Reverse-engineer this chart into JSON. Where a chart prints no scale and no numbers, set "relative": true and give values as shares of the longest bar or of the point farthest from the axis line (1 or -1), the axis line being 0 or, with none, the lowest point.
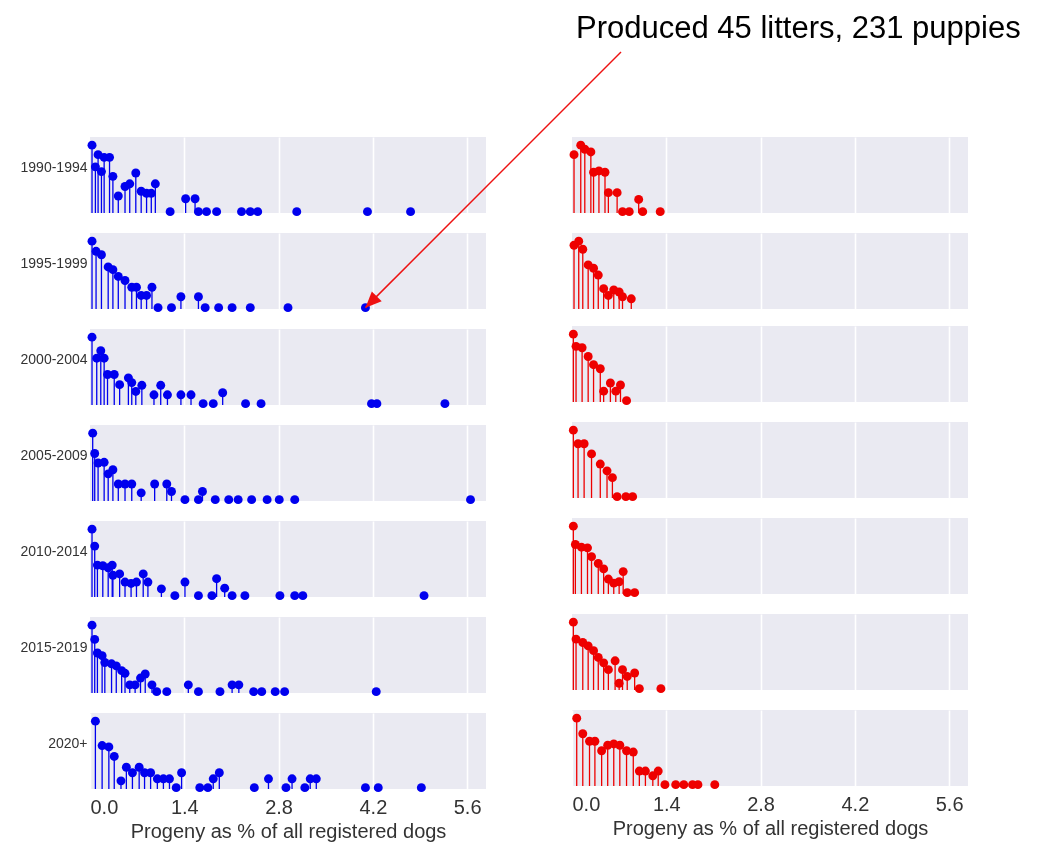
{
  "chart_data": [
    {
      "type": "lollipop",
      "ylabel": "1990-1994",
      "relative": true,
      "marker": "circle",
      "grid": "x",
      "tick_labels": false,
      "xlim": [
        0,
        5.88
      ],
      "xticks": [
        1.4,
        2.8,
        4.2,
        5.6
      ],
      "x": [
        0.03,
        0.08,
        0.12,
        0.17,
        0.21,
        0.29,
        0.34,
        0.42,
        0.52,
        0.59,
        0.68,
        0.76,
        0.84,
        0.91,
        0.97,
        1.19,
        1.42,
        1.56,
        1.61,
        1.73,
        1.88,
        2.25,
        2.38,
        2.49,
        3.07,
        4.12,
        4.76
      ],
      "series": [
        {
          "color": "#0000ee",
          "values": [
            1,
            0.68,
            0.86,
            0.61,
            0.82,
            0.82,
            0.54,
            0.25,
            0.39,
            0.43,
            0.59,
            0.32,
            0.29,
            0.29,
            0.43,
            0.02,
            0.21,
            0.21,
            0.02,
            0.02,
            0.02,
            0.02,
            0.02,
            0.02,
            0.02,
            0.02,
            0.02
          ]
        }
      ]
    },
    {
      "type": "lollipop",
      "relative": true,
      "marker": "circle",
      "grid": "x",
      "tick_labels": false,
      "xlim": [
        0,
        5.88
      ],
      "xticks": [
        1.4,
        2.8,
        4.2,
        5.6
      ],
      "x": [
        0.03,
        0.13,
        0.19,
        0.28,
        0.32,
        0.4,
        0.49,
        0.54,
        0.67,
        0.75,
        0.85,
        0.99,
        1.05,
        1.31
      ],
      "series": [
        {
          "color": "#ee0000",
          "values": [
            0.86,
            1,
            0.94,
            0.9,
            0.6,
            0.62,
            0.6,
            0.3,
            0.3,
            0.02,
            0.02,
            0.2,
            0.02,
            0.02
          ]
        }
      ]
    },
    {
      "type": "lollipop",
      "ylabel": "1995-1999",
      "relative": true,
      "marker": "circle",
      "grid": "x",
      "tick_labels": false,
      "xlim": [
        0,
        5.88
      ],
      "xticks": [
        1.4,
        2.8,
        4.2,
        5.6
      ],
      "annotations": [
        {
          "text": "Produced 45 litters, 231 puppies",
          "x": 4.09,
          "y": 0.02
        }
      ],
      "x": [
        0.03,
        0.09,
        0.17,
        0.27,
        0.34,
        0.42,
        0.52,
        0.62,
        0.69,
        0.76,
        0.84,
        0.92,
        1.01,
        1.21,
        1.35,
        1.61,
        1.71,
        1.91,
        2.11,
        2.38,
        2.94,
        4.09
      ],
      "series": [
        {
          "color": "#0000ee",
          "values": [
            1,
            0.85,
            0.8,
            0.62,
            0.58,
            0.48,
            0.42,
            0.32,
            0.32,
            0.2,
            0.2,
            0.32,
            0.02,
            0.02,
            0.18,
            0.18,
            0.02,
            0.02,
            0.02,
            0.02,
            0.02,
            0.02
          ]
        }
      ]
    },
    {
      "type": "lollipop",
      "relative": true,
      "marker": "circle",
      "grid": "x",
      "tick_labels": false,
      "xlim": [
        0,
        5.88
      ],
      "xticks": [
        1.4,
        2.8,
        4.2,
        5.6
      ],
      "x": [
        0.03,
        0.1,
        0.16,
        0.24,
        0.32,
        0.39,
        0.47,
        0.54,
        0.62,
        0.7,
        0.75,
        0.88
      ],
      "series": [
        {
          "color": "#ee0000",
          "values": [
            0.94,
            1,
            0.88,
            0.65,
            0.6,
            0.5,
            0.3,
            0.2,
            0.28,
            0.25,
            0.18,
            0.15
          ]
        }
      ]
    },
    {
      "type": "lollipop",
      "ylabel": "2000-2004",
      "relative": true,
      "marker": "circle",
      "grid": "x",
      "tick_labels": false,
      "xlim": [
        0,
        5.88
      ],
      "xticks": [
        1.4,
        2.8,
        4.2,
        5.6
      ],
      "x": [
        0.03,
        0.1,
        0.16,
        0.21,
        0.26,
        0.36,
        0.44,
        0.57,
        0.62,
        0.68,
        0.77,
        0.95,
        1.05,
        1.15,
        1.35,
        1.5,
        1.68,
        1.83,
        1.97,
        2.31,
        2.54,
        4.18,
        4.26,
        5.27
      ],
      "series": [
        {
          "color": "#0000ee",
          "values": [
            1,
            0.69,
            0.8,
            0.69,
            0.45,
            0.45,
            0.3,
            0.4,
            0.33,
            0.2,
            0.29,
            0.15,
            0.29,
            0.15,
            0.15,
            0.15,
            0.02,
            0.02,
            0.18,
            0.02,
            0.02,
            0.02,
            0.02,
            0.02
          ]
        }
      ]
    },
    {
      "type": "lollipop",
      "relative": true,
      "marker": "circle",
      "grid": "x",
      "tick_labels": false,
      "xlim": [
        0,
        5.88
      ],
      "xticks": [
        1.4,
        2.8,
        4.2,
        5.6
      ],
      "x": [
        0.02,
        0.06,
        0.15,
        0.24,
        0.32,
        0.42,
        0.47,
        0.57,
        0.65,
        0.72,
        0.81
      ],
      "series": [
        {
          "color": "#ee0000",
          "values": [
            1,
            0.82,
            0.8,
            0.67,
            0.55,
            0.49,
            0.16,
            0.28,
            0.16,
            0.25,
            0.02
          ]
        }
      ]
    },
    {
      "type": "lollipop",
      "ylabel": "2005-2009",
      "relative": true,
      "marker": "circle",
      "grid": "x",
      "tick_labels": false,
      "xlim": [
        0,
        5.88
      ],
      "xticks": [
        1.4,
        2.8,
        4.2,
        5.6
      ],
      "x": [
        0.04,
        0.07,
        0.12,
        0.21,
        0.27,
        0.34,
        0.42,
        0.52,
        0.62,
        0.76,
        0.96,
        1.14,
        1.21,
        1.41,
        1.61,
        1.67,
        1.86,
        2.06,
        2.2,
        2.4,
        2.63,
        2.81,
        3.04,
        5.65
      ],
      "series": [
        {
          "color": "#0000ee",
          "values": [
            1,
            0.7,
            0.56,
            0.57,
            0.4,
            0.46,
            0.25,
            0.25,
            0.25,
            0.12,
            0.25,
            0.25,
            0.14,
            0.02,
            0.02,
            0.14,
            0.02,
            0.02,
            0.02,
            0.02,
            0.02,
            0.02,
            0.02,
            0.02
          ]
        }
      ]
    },
    {
      "type": "lollipop",
      "relative": true,
      "marker": "circle",
      "grid": "x",
      "tick_labels": false,
      "xlim": [
        0,
        5.88
      ],
      "xticks": [
        1.4,
        2.8,
        4.2,
        5.6
      ],
      "x": [
        0.02,
        0.09,
        0.18,
        0.29,
        0.42,
        0.52,
        0.6,
        0.67,
        0.8,
        0.9
      ],
      "series": [
        {
          "color": "#ee0000",
          "values": [
            1,
            0.8,
            0.8,
            0.65,
            0.5,
            0.4,
            0.3,
            0.02,
            0.02,
            0.02
          ]
        }
      ]
    },
    {
      "type": "lollipop",
      "ylabel": "2010-2014",
      "relative": true,
      "marker": "circle",
      "grid": "x",
      "tick_labels": false,
      "xlim": [
        0,
        5.88
      ],
      "xticks": [
        1.4,
        2.8,
        4.2,
        5.6
      ],
      "x": [
        0.03,
        0.07,
        0.11,
        0.19,
        0.27,
        0.33,
        0.34,
        0.44,
        0.52,
        0.61,
        0.69,
        0.79,
        0.86,
        1.06,
        1.26,
        1.41,
        1.61,
        1.81,
        1.88,
        2.0,
        2.11,
        2.3,
        2.82,
        3.04,
        3.16,
        4.96
      ],
      "series": [
        {
          "color": "#0000ee",
          "values": [
            1,
            0.75,
            0.47,
            0.46,
            0.43,
            0.47,
            0.32,
            0.34,
            0.22,
            0.2,
            0.22,
            0.34,
            0.22,
            0.12,
            0.02,
            0.22,
            0.02,
            0.02,
            0.27,
            0.13,
            0.02,
            0.02,
            0.02,
            0.02,
            0.02,
            0.02
          ]
        }
      ]
    },
    {
      "type": "lollipop",
      "relative": true,
      "marker": "circle",
      "grid": "x",
      "tick_labels": false,
      "xlim": [
        0,
        5.88
      ],
      "xticks": [
        1.4,
        2.8,
        4.2,
        5.6
      ],
      "x": [
        0.02,
        0.05,
        0.14,
        0.23,
        0.29,
        0.39,
        0.47,
        0.54,
        0.62,
        0.7,
        0.76,
        0.82,
        0.93
      ],
      "series": [
        {
          "color": "#ee0000",
          "values": [
            1,
            0.73,
            0.69,
            0.68,
            0.55,
            0.45,
            0.37,
            0.22,
            0.16,
            0.18,
            0.33,
            0.02,
            0.02
          ]
        }
      ]
    },
    {
      "type": "lollipop",
      "ylabel": "2015-2019",
      "relative": true,
      "marker": "circle",
      "grid": "x",
      "tick_labels": false,
      "xlim": [
        0,
        5.88
      ],
      "xticks": [
        1.4,
        2.8,
        4.2,
        5.6
      ],
      "x": [
        0.03,
        0.07,
        0.11,
        0.18,
        0.22,
        0.32,
        0.39,
        0.47,
        0.52,
        0.59,
        0.67,
        0.75,
        0.82,
        0.92,
        0.99,
        1.14,
        1.46,
        1.61,
        1.93,
        2.11,
        2.21,
        2.43,
        2.55,
        2.75,
        2.89,
        4.25
      ],
      "series": [
        {
          "color": "#0000ee",
          "values": [
            1,
            0.79,
            0.59,
            0.55,
            0.45,
            0.43,
            0.4,
            0.33,
            0.29,
            0.12,
            0.12,
            0.22,
            0.28,
            0.12,
            0.02,
            0.02,
            0.12,
            0.02,
            0.02,
            0.12,
            0.12,
            0.02,
            0.02,
            0.02,
            0.02,
            0.02
          ]
        }
      ]
    },
    {
      "type": "lollipop",
      "relative": true,
      "marker": "circle",
      "grid": "x",
      "tick_labels": false,
      "xlim": [
        0,
        5.88
      ],
      "xticks": [
        1.4,
        2.8,
        4.2,
        5.6
      ],
      "x": [
        0.02,
        0.06,
        0.16,
        0.24,
        0.32,
        0.39,
        0.47,
        0.54,
        0.64,
        0.7,
        0.75,
        0.82,
        0.93,
        1.0,
        1.32
      ],
      "series": [
        {
          "color": "#ee0000",
          "values": [
            1,
            0.75,
            0.7,
            0.65,
            0.58,
            0.48,
            0.4,
            0.3,
            0.43,
            0.1,
            0.3,
            0.2,
            0.25,
            0.02,
            0.02
          ]
        }
      ]
    },
    {
      "type": "lollipop",
      "ylabel": "2020+",
      "xlabel": "Progeny as % of all registered dogs",
      "relative": true,
      "marker": "circle",
      "grid": "x",
      "tick_labels": "x",
      "xlim": [
        0,
        5.88
      ],
      "xticks": [
        {
          "value": 0,
          "label": "0.0"
        },
        1.4,
        2.8,
        4.2,
        5.6
      ],
      "x": [
        0.08,
        0.18,
        0.28,
        0.36,
        0.46,
        0.54,
        0.63,
        0.73,
        0.81,
        0.9,
        1.0,
        1.09,
        1.18,
        1.28,
        1.36,
        1.63,
        1.75,
        1.83,
        1.92,
        2.44,
        2.65,
        2.91,
        3.0,
        3.19,
        3.27,
        3.36,
        4.09,
        4.28,
        4.92
      ],
      "series": [
        {
          "color": "#0000ee",
          "values": [
            1,
            0.64,
            0.62,
            0.48,
            0.12,
            0.32,
            0.24,
            0.32,
            0.24,
            0.24,
            0.15,
            0.15,
            0.15,
            0.02,
            0.24,
            0.02,
            0.02,
            0.15,
            0.24,
            0.02,
            0.15,
            0.02,
            0.15,
            0.02,
            0.15,
            0.15,
            0.02,
            0.02,
            0.02
          ]
        }
      ]
    },
    {
      "type": "lollipop",
      "xlabel": "Progeny as % of all registered dogs",
      "relative": true,
      "marker": "circle",
      "grid": "x",
      "tick_labels": "x",
      "xlim": [
        0,
        5.88
      ],
      "xticks": [
        {
          "value": 0,
          "label": "0.0"
        },
        1.4,
        2.8,
        4.2,
        5.6
      ],
      "x": [
        0.07,
        0.16,
        0.26,
        0.34,
        0.44,
        0.53,
        0.62,
        0.71,
        0.81,
        0.91,
        1.0,
        1.09,
        1.2,
        1.28,
        1.38,
        1.54,
        1.66,
        1.79,
        1.87,
        2.12
      ],
      "series": [
        {
          "color": "#ee0000",
          "values": [
            1,
            0.77,
            0.66,
            0.66,
            0.52,
            0.6,
            0.62,
            0.6,
            0.52,
            0.5,
            0.22,
            0.22,
            0.15,
            0.22,
            0.02,
            0.02,
            0.02,
            0.02,
            0.02,
            0.02
          ]
        }
      ]
    }
  ]
}
